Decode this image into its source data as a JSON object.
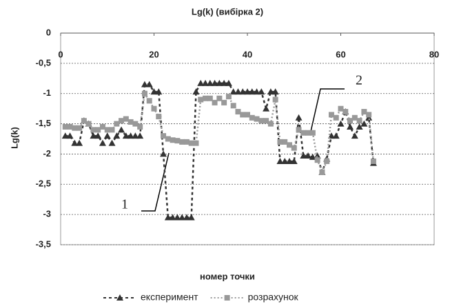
{
  "chart_data": {
    "type": "line",
    "title": "Lg(k) (вибірка 2)",
    "x_label": "номер точки",
    "y_label": "Lg(k)",
    "x": [
      1,
      2,
      3,
      4,
      5,
      6,
      7,
      8,
      9,
      10,
      11,
      12,
      13,
      14,
      15,
      16,
      17,
      18,
      19,
      20,
      21,
      22,
      23,
      24,
      25,
      26,
      27,
      28,
      29,
      30,
      31,
      32,
      33,
      34,
      35,
      36,
      37,
      38,
      39,
      40,
      41,
      42,
      43,
      44,
      45,
      46,
      47,
      48,
      49,
      50,
      51,
      52,
      53,
      54,
      55,
      56,
      57,
      58,
      59,
      60,
      61,
      62,
      63,
      64,
      65,
      66,
      67
    ],
    "series": [
      {
        "name": "експеримент",
        "color": "#333333",
        "marker": "triangle",
        "dash": "dashed",
        "values": [
          -1.7,
          -1.7,
          -1.82,
          -1.82,
          -1.45,
          -1.5,
          -1.7,
          -1.7,
          -1.82,
          -1.7,
          -1.82,
          -1.7,
          -1.6,
          -1.7,
          -1.7,
          -1.7,
          -1.7,
          -0.85,
          -0.85,
          -0.97,
          -0.97,
          -2.0,
          -3.05,
          -3.05,
          -3.05,
          -3.05,
          -3.05,
          -3.05,
          -0.97,
          -0.83,
          -0.83,
          -0.83,
          -0.83,
          -0.83,
          -0.83,
          -0.83,
          -0.97,
          -0.97,
          -0.97,
          -0.97,
          -0.97,
          -0.97,
          -0.97,
          -1.25,
          -0.97,
          -0.97,
          -2.12,
          -2.12,
          -2.12,
          -2.12,
          -1.4,
          -2.03,
          -2.03,
          -2.05,
          -2.03,
          -2.3,
          -2.08,
          -1.7,
          -1.7,
          -1.5,
          -1.3,
          -1.55,
          -1.7,
          -1.55,
          -1.5,
          -1.4,
          -2.15
        ]
      },
      {
        "name": "розрахунок",
        "color": "#999999",
        "marker": "square",
        "dash": "dotted",
        "values": [
          -1.55,
          -1.55,
          -1.57,
          -1.57,
          -1.45,
          -1.5,
          -1.6,
          -1.6,
          -1.55,
          -1.6,
          -1.6,
          -1.5,
          -1.45,
          -1.42,
          -1.47,
          -1.5,
          -1.55,
          -1.0,
          -1.12,
          -1.25,
          -1.38,
          -1.7,
          -1.75,
          -1.77,
          -1.78,
          -1.8,
          -1.8,
          -1.82,
          -1.82,
          -1.1,
          -1.08,
          -1.08,
          -1.15,
          -1.08,
          -1.15,
          -1.05,
          -1.2,
          -1.3,
          -1.35,
          -1.35,
          -1.4,
          -1.42,
          -1.45,
          -1.45,
          -1.5,
          -1.1,
          -1.8,
          -1.8,
          -1.85,
          -1.9,
          -1.6,
          -1.65,
          -1.65,
          -1.65,
          -2.1,
          -2.3,
          -2.12,
          -1.35,
          -1.4,
          -1.25,
          -1.3,
          -1.45,
          -1.4,
          -1.45,
          -1.3,
          -1.35,
          -2.12
        ]
      }
    ],
    "annotations": [
      "1",
      "2"
    ],
    "xlim": [
      0,
      80
    ],
    "xticks": [
      0,
      20,
      40,
      60,
      80
    ],
    "ylim": [
      -3.5,
      0
    ],
    "yticks": [
      0,
      {
        "value": -0.5,
        "label": "-0,5"
      },
      -1,
      {
        "value": -1.5,
        "label": "-1,5"
      },
      -2,
      {
        "value": -2.5,
        "label": "-2,5"
      },
      -3,
      {
        "value": -3.5,
        "label": "-3,5"
      }
    ],
    "grid": true
  }
}
